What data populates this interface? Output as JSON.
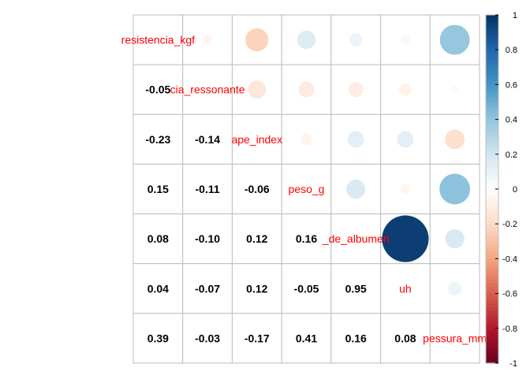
{
  "chart_data": {
    "type": "heatmap",
    "variables": [
      "resistencia_kgf",
      "frequencia_ressonante",
      "shape_index",
      "peso_g",
      "altura_de_albumen",
      "uh",
      "espessura_mm"
    ],
    "cell_labels": [
      "resistencia_kgf",
      "cia_ressonante",
      "ape_index",
      "peso_g",
      "_de_albumen",
      "uh",
      "pessura_mm"
    ],
    "matrix": [
      [
        1,
        -0.05,
        -0.23,
        0.15,
        0.08,
        0.04,
        0.39
      ],
      [
        -0.05,
        1,
        -0.14,
        -0.11,
        -0.1,
        -0.07,
        -0.03
      ],
      [
        -0.23,
        -0.14,
        1,
        -0.06,
        0.12,
        0.12,
        -0.17
      ],
      [
        0.15,
        -0.11,
        -0.06,
        1,
        0.16,
        -0.05,
        0.41
      ],
      [
        0.08,
        -0.1,
        0.12,
        0.16,
        1,
        0.95,
        0.16
      ],
      [
        0.04,
        -0.07,
        0.12,
        -0.05,
        0.95,
        1,
        0.08
      ],
      [
        0.39,
        -0.03,
        -0.17,
        0.41,
        0.16,
        0.08,
        1
      ]
    ],
    "upper": "circle",
    "lower": "number",
    "legend": {
      "ticks": [
        "1",
        "0.8",
        "0.6",
        "0.4",
        "0.2",
        "0",
        "-0.2",
        "-0.4",
        "-0.6",
        "-0.8",
        "-1"
      ],
      "range": [
        -1,
        1
      ],
      "placement": "right"
    },
    "colors": {
      "negative_end": "#67001F",
      "neg_mid1": "#B2182B",
      "neg_mid2": "#D6604D",
      "neg_mid3": "#F4A582",
      "neg_mid4": "#FDDBC7",
      "zero": "#FFFFFF",
      "pos_mid4": "#D1E5F0",
      "pos_mid3": "#92C5DE",
      "pos_mid2": "#4393C3",
      "pos_mid1": "#2166AC",
      "positive_end": "#053061",
      "diag_label": "#FF0000",
      "grid": "#BEBEBE"
    }
  }
}
